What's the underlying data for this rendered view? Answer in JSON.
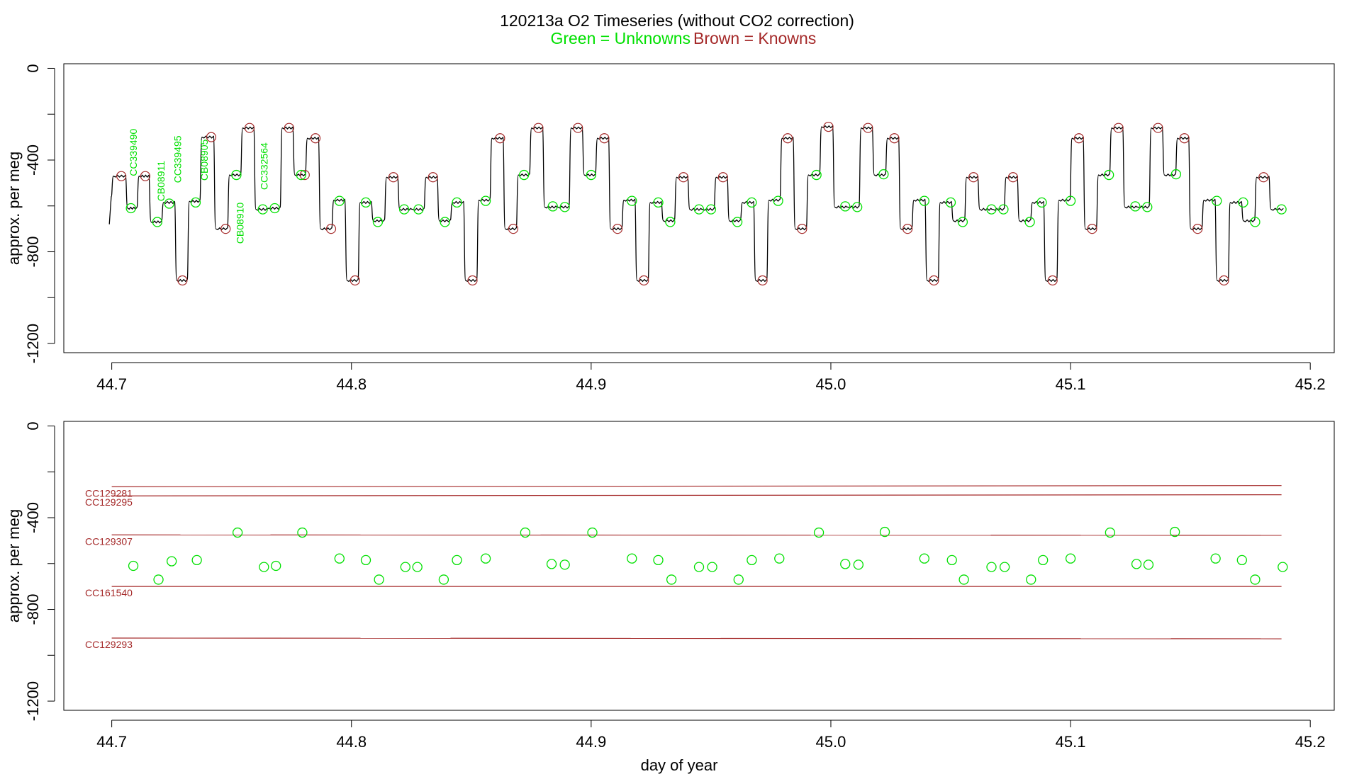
{
  "title": {
    "line1": "120213a   O2 Timeseries (without CO2 correction)",
    "legend_green": "Green = Unknowns",
    "legend_brown": "Brown = Knowns"
  },
  "colors": {
    "unknown": "#00e000",
    "known": "#a52a2a",
    "series_line": "#000000",
    "axis": "#000000"
  },
  "chart_data": [
    {
      "type": "line",
      "panel": "top",
      "xlabel": "",
      "ylabel": "approx. per meg",
      "xlim": [
        44.68,
        45.21
      ],
      "ylim": [
        -1240,
        20
      ],
      "xticks": [
        44.7,
        44.8,
        44.9,
        45.0,
        45.1,
        45.2
      ],
      "xtick_labels": [
        "44.7",
        "44.8",
        "44.9",
        "45.0",
        "45.1",
        "45.2"
      ],
      "yticks": [
        0,
        -400,
        -800,
        -1200
      ],
      "ytick_labels": [
        "0",
        "-400",
        "-800",
        "-1200"
      ],
      "start": [
        44.699,
        -680
      ],
      "level_sequence": [
        [
          44.7035,
          -470
        ],
        [
          44.708,
          -610
        ],
        [
          44.713,
          -470
        ],
        [
          44.718,
          -670
        ],
        [
          44.7235,
          -585
        ],
        [
          44.729,
          -925
        ],
        [
          44.734,
          -580
        ],
        [
          44.7395,
          -300
        ],
        [
          44.7455,
          -700
        ],
        [
          44.751,
          -465
        ],
        [
          44.7565,
          -260
        ],
        [
          44.762,
          -615
        ],
        [
          44.7675,
          -610
        ],
        [
          44.773,
          -260
        ],
        [
          44.778,
          -465
        ],
        [
          44.7835,
          -305
        ],
        [
          44.789,
          -700
        ],
        [
          44.7945,
          -575
        ],
        [
          44.8,
          -925
        ],
        [
          44.8055,
          -585
        ],
        [
          44.811,
          -665
        ],
        [
          44.8165,
          -475
        ],
        [
          44.822,
          -615
        ],
        [
          44.8275,
          -615
        ],
        [
          44.833,
          -475
        ],
        [
          44.8385,
          -665
        ],
        [
          44.844,
          -585
        ],
        [
          44.8495,
          -925
        ],
        [
          44.855,
          -575
        ],
        [
          44.8605,
          -305
        ],
        [
          44.866,
          -700
        ],
        [
          44.8715,
          -465
        ],
        [
          44.877,
          -260
        ],
        [
          44.8825,
          -605
        ],
        [
          44.888,
          -605
        ],
        [
          44.8935,
          -260
        ],
        [
          44.899,
          -465
        ],
        [
          44.9045,
          -305
        ],
        [
          44.91,
          -700
        ],
        [
          44.9155,
          -575
        ],
        [
          44.921,
          -925
        ],
        [
          44.9265,
          -585
        ],
        [
          44.932,
          -665
        ],
        [
          44.9375,
          -475
        ],
        [
          44.943,
          -615
        ],
        [
          44.9485,
          -615
        ],
        [
          44.954,
          -475
        ],
        [
          44.9595,
          -665
        ],
        [
          44.965,
          -585
        ],
        [
          44.9705,
          -925
        ],
        [
          44.976,
          -575
        ],
        [
          44.9815,
          -305
        ],
        [
          44.987,
          -700
        ],
        [
          44.9925,
          -465
        ],
        [
          44.998,
          -255
        ],
        [
          45.0035,
          -605
        ],
        [
          45.009,
          -605
        ],
        [
          45.0145,
          -260
        ],
        [
          45.02,
          -465
        ],
        [
          45.0255,
          -305
        ],
        [
          45.031,
          -700
        ],
        [
          45.0365,
          -575
        ],
        [
          45.042,
          -925
        ],
        [
          45.0475,
          -585
        ],
        [
          45.053,
          -665
        ],
        [
          45.0585,
          -475
        ],
        [
          45.064,
          -615
        ],
        [
          45.0695,
          -615
        ],
        [
          45.075,
          -475
        ],
        [
          45.0805,
          -665
        ],
        [
          45.086,
          -585
        ],
        [
          45.0915,
          -925
        ],
        [
          45.097,
          -575
        ],
        [
          45.1025,
          -305
        ],
        [
          45.108,
          -700
        ],
        [
          45.1135,
          -465
        ],
        [
          45.119,
          -260
        ],
        [
          45.1245,
          -605
        ],
        [
          45.13,
          -605
        ],
        [
          45.1355,
          -260
        ],
        [
          45.141,
          -465
        ],
        [
          45.1465,
          -305
        ],
        [
          45.152,
          -700
        ],
        [
          45.1575,
          -575
        ],
        [
          45.163,
          -925
        ],
        [
          45.1685,
          -585
        ],
        [
          45.174,
          -665
        ],
        [
          45.1795,
          -475
        ],
        [
          45.186,
          -615
        ]
      ],
      "known_points": [
        [
          44.704,
          -470
        ],
        [
          44.714,
          -470
        ],
        [
          44.7295,
          -925
        ],
        [
          44.7415,
          -300
        ],
        [
          44.7475,
          -700
        ],
        [
          44.7575,
          -260
        ],
        [
          44.774,
          -260
        ],
        [
          44.7805,
          -465
        ],
        [
          44.785,
          -305
        ],
        [
          44.7915,
          -700
        ],
        [
          44.8015,
          -925
        ],
        [
          44.8175,
          -475
        ],
        [
          44.834,
          -475
        ],
        [
          44.8505,
          -925
        ],
        [
          44.862,
          -305
        ],
        [
          44.8675,
          -700
        ],
        [
          44.878,
          -260
        ],
        [
          44.8945,
          -260
        ],
        [
          44.9055,
          -305
        ],
        [
          44.911,
          -700
        ],
        [
          44.922,
          -925
        ],
        [
          44.9385,
          -475
        ],
        [
          44.955,
          -475
        ],
        [
          44.9715,
          -925
        ],
        [
          44.982,
          -305
        ],
        [
          44.988,
          -700
        ],
        [
          44.999,
          -255
        ],
        [
          45.0155,
          -260
        ],
        [
          45.0265,
          -305
        ],
        [
          45.032,
          -700
        ],
        [
          45.043,
          -925
        ],
        [
          45.0595,
          -475
        ],
        [
          45.076,
          -475
        ],
        [
          45.0925,
          -925
        ],
        [
          45.1035,
          -305
        ],
        [
          45.109,
          -700
        ],
        [
          45.12,
          -260
        ],
        [
          45.1365,
          -260
        ],
        [
          45.1475,
          -305
        ],
        [
          45.153,
          -700
        ],
        [
          45.164,
          -925
        ],
        [
          45.1805,
          -475
        ]
      ],
      "unknown_points": [
        [
          44.708,
          -610
        ],
        [
          44.719,
          -670
        ],
        [
          44.724,
          -590
        ],
        [
          44.735,
          -585
        ],
        [
          44.752,
          -465
        ],
        [
          44.763,
          -615
        ],
        [
          44.768,
          -610
        ],
        [
          44.779,
          -465
        ],
        [
          44.795,
          -578
        ],
        [
          44.806,
          -585
        ],
        [
          44.811,
          -670
        ],
        [
          44.822,
          -615
        ],
        [
          44.828,
          -615
        ],
        [
          44.839,
          -670
        ],
        [
          44.844,
          -585
        ],
        [
          44.856,
          -578
        ],
        [
          44.872,
          -465
        ],
        [
          44.884,
          -602
        ],
        [
          44.889,
          -605
        ],
        [
          44.9,
          -465
        ],
        [
          44.917,
          -578
        ],
        [
          44.928,
          -585
        ],
        [
          44.933,
          -670
        ],
        [
          44.945,
          -615
        ],
        [
          44.95,
          -615
        ],
        [
          44.961,
          -670
        ],
        [
          44.967,
          -585
        ],
        [
          44.978,
          -578
        ],
        [
          44.994,
          -465
        ],
        [
          45.006,
          -602
        ],
        [
          45.011,
          -605
        ],
        [
          45.022,
          -462
        ],
        [
          45.039,
          -578
        ],
        [
          45.05,
          -585
        ],
        [
          45.055,
          -670
        ],
        [
          45.067,
          -615
        ],
        [
          45.072,
          -615
        ],
        [
          45.083,
          -670
        ],
        [
          45.088,
          -585
        ],
        [
          45.1,
          -578
        ],
        [
          45.116,
          -465
        ],
        [
          45.127,
          -602
        ],
        [
          45.132,
          -605
        ],
        [
          45.144,
          -462
        ],
        [
          45.161,
          -578
        ],
        [
          45.172,
          -585
        ],
        [
          45.177,
          -670
        ],
        [
          45.188,
          -615
        ]
      ],
      "unknown_labels": [
        {
          "text": "CC339490",
          "x": 44.709,
          "y": -470
        },
        {
          "text": "CB08911",
          "x": 44.7205,
          "y": -580
        },
        {
          "text": "CC339495",
          "x": 44.7275,
          "y": -500
        },
        {
          "text": "CB08905",
          "x": 44.7385,
          "y": -490
        },
        {
          "text": "CB08910",
          "x": 44.7535,
          "y": -765
        },
        {
          "text": "CC332564",
          "x": 44.7635,
          "y": -530
        }
      ]
    },
    {
      "type": "scatter",
      "panel": "bottom",
      "xlabel": "day of year",
      "ylabel": "approx. per meg",
      "xlim": [
        44.68,
        45.21
      ],
      "ylim": [
        -1240,
        20
      ],
      "xticks": [
        44.7,
        44.8,
        44.9,
        45.0,
        45.1,
        45.2
      ],
      "xtick_labels": [
        "44.7",
        "44.8",
        "44.9",
        "45.0",
        "45.1",
        "45.2"
      ],
      "yticks": [
        0,
        -400,
        -800,
        -1200
      ],
      "ytick_labels": [
        "0",
        "-400",
        "-800",
        "-1200"
      ],
      "reference_lines": [
        {
          "name": "CC129281",
          "x": [
            44.7,
            45.188
          ],
          "y": [
            -265,
            -260
          ]
        },
        {
          "name": "CC129295",
          "x": [
            44.7,
            45.188
          ],
          "y": [
            -305,
            -300
          ]
        },
        {
          "name": "CC129307",
          "x": [
            44.7,
            45.188
          ],
          "y": [
            -475,
            -477
          ]
        },
        {
          "name": "CC161540",
          "x": [
            44.7,
            45.188
          ],
          "y": [
            -700,
            -700
          ]
        },
        {
          "name": "CC129293",
          "x": [
            44.7,
            45.188
          ],
          "y": [
            -925,
            -928
          ]
        }
      ],
      "unknown_points": [
        [
          44.709,
          -610
        ],
        [
          44.7195,
          -670
        ],
        [
          44.725,
          -590
        ],
        [
          44.7355,
          -585
        ],
        [
          44.7525,
          -465
        ],
        [
          44.7635,
          -615
        ],
        [
          44.7685,
          -610
        ],
        [
          44.7795,
          -465
        ],
        [
          44.795,
          -578
        ],
        [
          44.806,
          -585
        ],
        [
          44.8115,
          -670
        ],
        [
          44.8225,
          -615
        ],
        [
          44.8275,
          -615
        ],
        [
          44.8385,
          -670
        ],
        [
          44.844,
          -585
        ],
        [
          44.856,
          -578
        ],
        [
          44.8725,
          -465
        ],
        [
          44.8835,
          -602
        ],
        [
          44.889,
          -605
        ],
        [
          44.9005,
          -465
        ],
        [
          44.917,
          -578
        ],
        [
          44.928,
          -585
        ],
        [
          44.9335,
          -670
        ],
        [
          44.945,
          -615
        ],
        [
          44.9505,
          -615
        ],
        [
          44.9615,
          -670
        ],
        [
          44.967,
          -585
        ],
        [
          44.9785,
          -578
        ],
        [
          44.995,
          -465
        ],
        [
          45.006,
          -602
        ],
        [
          45.0115,
          -605
        ],
        [
          45.0225,
          -462
        ],
        [
          45.039,
          -578
        ],
        [
          45.0505,
          -585
        ],
        [
          45.0555,
          -670
        ],
        [
          45.067,
          -615
        ],
        [
          45.0725,
          -615
        ],
        [
          45.0835,
          -670
        ],
        [
          45.0885,
          -585
        ],
        [
          45.1,
          -578
        ],
        [
          45.1165,
          -465
        ],
        [
          45.1275,
          -602
        ],
        [
          45.1325,
          -605
        ],
        [
          45.1435,
          -462
        ],
        [
          45.1605,
          -578
        ],
        [
          45.1715,
          -585
        ],
        [
          45.177,
          -670
        ],
        [
          45.1885,
          -615
        ]
      ]
    }
  ]
}
